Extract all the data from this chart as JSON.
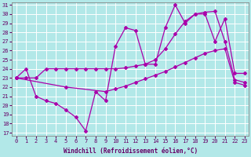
{
  "xlabel": "Windchill (Refroidissement éolien,°C)",
  "bg_color": "#b2e8e8",
  "grid_color": "#ffffff",
  "line_color": "#aa00aa",
  "xlim_min": -0.4,
  "xlim_max": 23.4,
  "ylim_min": 16.7,
  "ylim_max": 31.3,
  "xticks": [
    0,
    1,
    2,
    3,
    4,
    5,
    6,
    7,
    8,
    9,
    10,
    11,
    12,
    13,
    14,
    15,
    16,
    17,
    18,
    19,
    20,
    21,
    22,
    23
  ],
  "yticks": [
    17,
    18,
    19,
    20,
    21,
    22,
    23,
    24,
    25,
    26,
    27,
    28,
    29,
    30,
    31
  ],
  "line1_x": [
    0,
    1,
    2,
    3,
    4,
    5,
    6,
    7,
    8,
    9,
    10,
    11,
    12,
    13,
    14,
    15,
    16,
    17,
    18,
    19,
    20,
    21,
    22,
    23
  ],
  "line1_y": [
    23,
    24,
    21,
    20.5,
    20.2,
    19.5,
    18.7,
    17.2,
    21.5,
    20.5,
    26.5,
    28.5,
    28.2,
    24.5,
    24.5,
    28.5,
    31.0,
    29.0,
    30.0,
    30.0,
    27.0,
    29.5,
    23.5,
    23.5
  ],
  "line2_x": [
    0,
    1,
    2,
    3,
    4,
    5,
    6,
    7,
    8,
    9,
    10,
    11,
    12,
    13,
    14,
    15,
    16,
    17,
    18,
    19,
    20,
    21,
    22,
    23
  ],
  "line2_y": [
    23,
    23.0,
    23.0,
    24.0,
    24.0,
    24.0,
    24.0,
    24.0,
    24.0,
    24.0,
    24.0,
    24.1,
    24.3,
    24.5,
    25.0,
    26.2,
    27.8,
    29.2,
    30.0,
    30.2,
    30.3,
    27.0,
    22.8,
    22.5
  ],
  "line3_x": [
    0,
    5,
    9,
    10,
    11,
    12,
    13,
    14,
    15,
    16,
    17,
    18,
    19,
    20,
    21,
    22,
    23
  ],
  "line3_y": [
    23,
    22.0,
    21.5,
    21.8,
    22.1,
    22.5,
    22.9,
    23.3,
    23.7,
    24.2,
    24.7,
    25.2,
    25.7,
    26.0,
    26.2,
    22.5,
    22.2
  ],
  "tick_color": "#660066",
  "label_fontsize": 5.5,
  "tick_fontsize": 5
}
